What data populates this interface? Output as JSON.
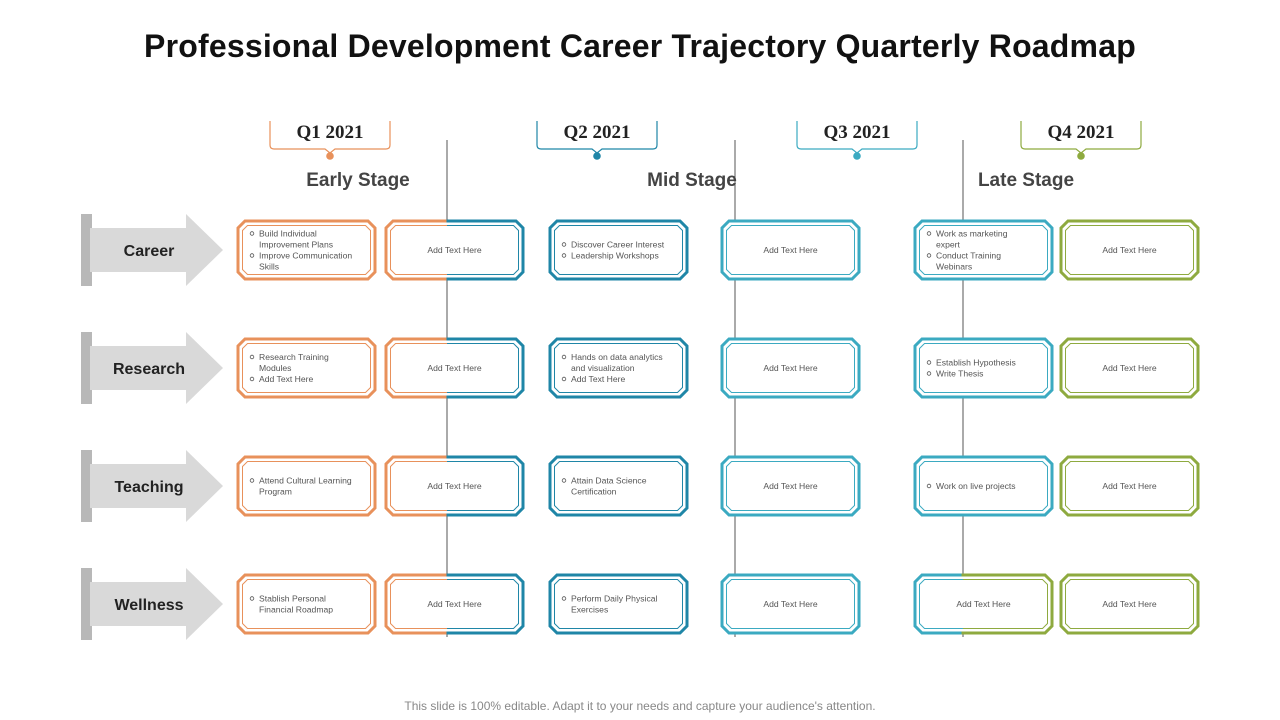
{
  "title": "Professional Development Career Trajectory Quarterly Roadmap",
  "footer": "This slide is 100% editable. Adapt it to your needs and capture your audience's attention.",
  "colors": {
    "orange": "#E8915B",
    "blue": "#1F86A7",
    "teal": "#3BAAC1",
    "green": "#8EAA3F",
    "arrow": "#D9D9D9",
    "arrow_shadow": "#B8B8B8",
    "divider": "#555555"
  },
  "quarters": [
    {
      "label": "Q1 2021",
      "color": "orange"
    },
    {
      "label": "Q2 2021",
      "color": "blue"
    },
    {
      "label": "Q3 2021",
      "color": "teal"
    },
    {
      "label": "Q4 2021",
      "color": "green"
    }
  ],
  "stages": [
    "Early Stage",
    "Mid Stage",
    "Late Stage"
  ],
  "placeholder": "Add Text Here",
  "rows": [
    {
      "label": "Career",
      "cards": [
        {
          "items": [
            "Build Individual Improvement Plans",
            "Improve Communication Skills"
          ]
        },
        {
          "text": "Add Text Here"
        },
        {
          "items": [
            "Discover Career Interest",
            "Leadership Workshops"
          ]
        },
        {
          "text": "Add Text Here"
        },
        {
          "items": [
            "Work as marketing expert",
            "Conduct Training Webinars"
          ]
        },
        {
          "text": "Add Text Here"
        }
      ]
    },
    {
      "label": "Research",
      "cards": [
        {
          "items": [
            "Research Training Modules",
            "Add Text Here"
          ]
        },
        {
          "text": "Add Text Here"
        },
        {
          "items": [
            "Hands on data analytics and visualization",
            "Add Text Here"
          ]
        },
        {
          "text": "Add Text Here"
        },
        {
          "items": [
            "Establish Hypothesis",
            "Write Thesis"
          ]
        },
        {
          "text": "Add Text Here"
        }
      ]
    },
    {
      "label": "Teaching",
      "cards": [
        {
          "items": [
            "Attend Cultural Learning Program"
          ]
        },
        {
          "text": "Add Text Here"
        },
        {
          "items": [
            "Attain Data Science Certification"
          ]
        },
        {
          "text": "Add Text Here"
        },
        {
          "items": [
            "Work on live projects"
          ]
        },
        {
          "text": "Add Text Here"
        }
      ]
    },
    {
      "label": "Wellness",
      "cards": [
        {
          "items": [
            "Stablish Personal Financial Roadmap"
          ]
        },
        {
          "text": "Add Text Here"
        },
        {
          "items": [
            "Perform Daily Physical Exercises"
          ]
        },
        {
          "text": "Add Text Here"
        },
        {
          "text": "Add Text Here"
        },
        {
          "text": "Add Text Here"
        }
      ]
    }
  ]
}
